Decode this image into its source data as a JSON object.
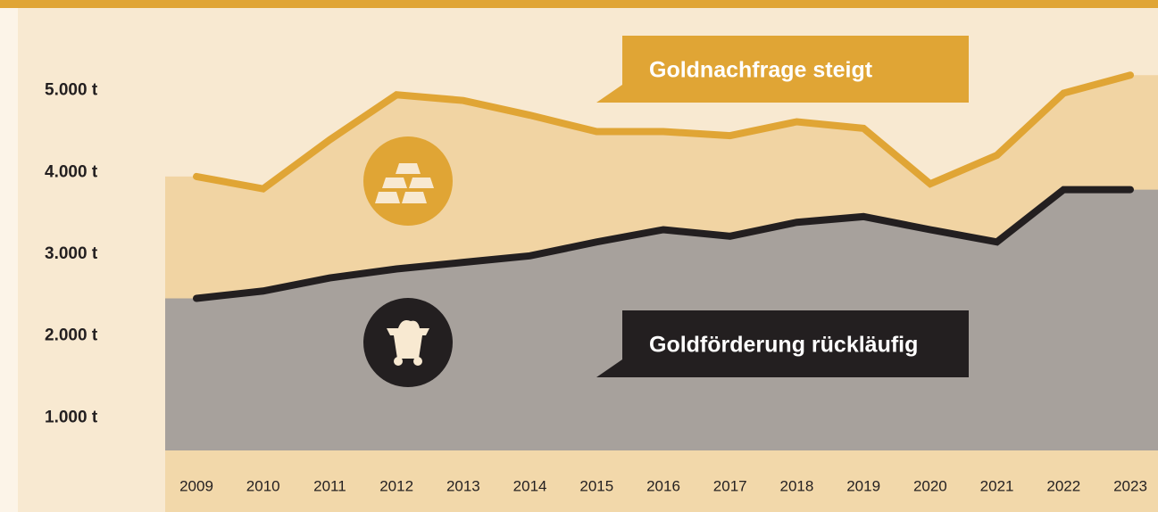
{
  "chart_data": {
    "type": "line",
    "categories": [
      "2009",
      "2010",
      "2011",
      "2012",
      "2013",
      "2014",
      "2015",
      "2016",
      "2017",
      "2018",
      "2019",
      "2020",
      "2021",
      "2022",
      "2023"
    ],
    "series": [
      {
        "name": "Goldnachfrage steigt",
        "color": "#e0a535",
        "area_color": "#f1d4a3",
        "values": [
          3950,
          3800,
          4400,
          4950,
          4880,
          4700,
          4500,
          4500,
          4450,
          4620,
          4540,
          3860,
          4210,
          4970,
          5190
        ]
      },
      {
        "name": "Goldförderung rückläufig",
        "color": "#231f20",
        "area_color": "#a7a19c",
        "values": [
          2460,
          2550,
          2710,
          2820,
          2900,
          2980,
          3150,
          3300,
          3220,
          3390,
          3460,
          3300,
          3150,
          3790,
          3790
        ]
      }
    ],
    "ylim": [
      600,
      6000
    ],
    "yticks": [
      {
        "value": 1000,
        "label": "1.000 t"
      },
      {
        "value": 2000,
        "label": "2.000 t"
      },
      {
        "value": 3000,
        "label": "3.000 t"
      },
      {
        "value": 4000,
        "label": "4.000 t"
      },
      {
        "value": 5000,
        "label": "5.000 t"
      }
    ]
  }
}
